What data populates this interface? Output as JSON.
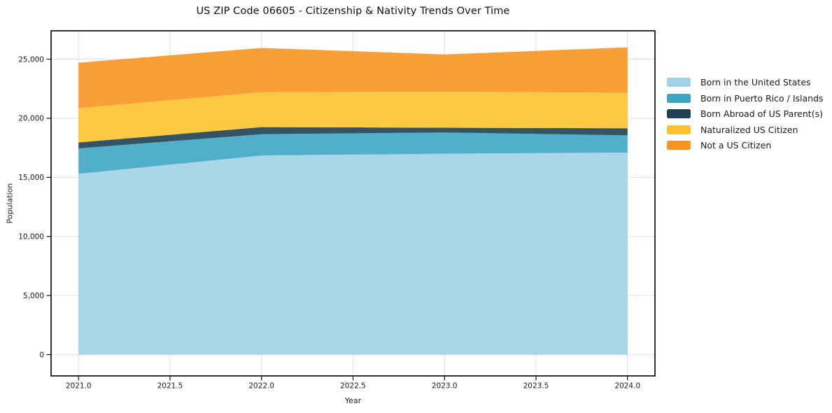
{
  "chart_data": {
    "type": "area",
    "stacked": true,
    "title": "US ZIP Code 06605 - Citizenship & Nativity Trends Over Time",
    "xlabel": "Year",
    "ylabel": "Population",
    "x": [
      2021,
      2022,
      2023,
      2024
    ],
    "series": [
      {
        "name": "Born in the United States",
        "color": "#a2d1e7",
        "values": [
          15300,
          16850,
          17000,
          17100
        ]
      },
      {
        "name": "Born in Puerto Rico / Islands",
        "color": "#3ea6c5",
        "values": [
          2150,
          1800,
          1800,
          1450
        ]
      },
      {
        "name": "Born Abroad of US Parent(s)",
        "color": "#1e4153",
        "values": [
          500,
          600,
          400,
          600
        ]
      },
      {
        "name": "Naturalized US Citizen",
        "color": "#fcc32f",
        "values": [
          2900,
          2950,
          3050,
          3000
        ]
      },
      {
        "name": "Not a US Citizen",
        "color": "#f89522",
        "values": [
          3850,
          3750,
          3150,
          3850
        ]
      }
    ],
    "stacked_totals": [
      24700,
      25950,
      25400,
      26000
    ],
    "x_ticks": {
      "values": [
        2021.0,
        2021.5,
        2022.0,
        2022.5,
        2023.0,
        2023.5,
        2024.0
      ],
      "labels": [
        "2021.0",
        "2021.5",
        "2022.0",
        "2022.5",
        "2023.0",
        "2023.5",
        "2024.0"
      ]
    },
    "y_ticks": {
      "values": [
        0,
        5000,
        10000,
        15000,
        20000,
        25000
      ],
      "labels": [
        "0",
        "5,000",
        "10,000",
        "15,000",
        "20,000",
        "25,000"
      ]
    },
    "xlim": [
      2020.85,
      2024.15
    ],
    "ylim": [
      -1800,
      27400
    ],
    "grid": true,
    "grid_color": "#dedede",
    "spine_color": "#000000",
    "tick_text_color": "#1c1c1c",
    "fill_opacity": 0.9,
    "legend_position": "right-outside"
  }
}
